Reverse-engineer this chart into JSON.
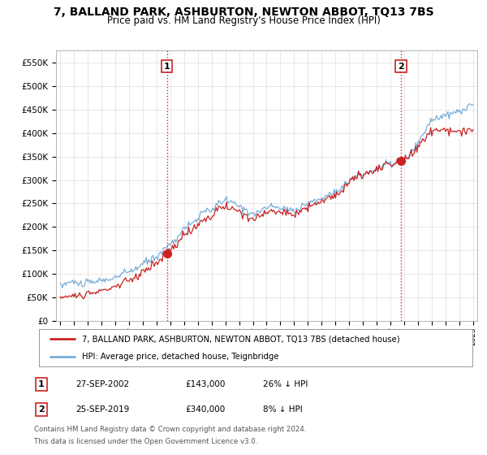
{
  "title": "7, BALLAND PARK, ASHBURTON, NEWTON ABBOT, TQ13 7BS",
  "subtitle": "Price paid vs. HM Land Registry's House Price Index (HPI)",
  "ylim": [
    0,
    577000
  ],
  "yticks": [
    0,
    50000,
    100000,
    150000,
    200000,
    250000,
    300000,
    350000,
    400000,
    450000,
    500000,
    550000
  ],
  "ytick_labels": [
    "£0",
    "£50K",
    "£100K",
    "£150K",
    "£200K",
    "£250K",
    "£300K",
    "£350K",
    "£400K",
    "£450K",
    "£500K",
    "£550K"
  ],
  "legend_line1": "7, BALLAND PARK, ASHBURTON, NEWTON ABBOT, TQ13 7BS (detached house)",
  "legend_line2": "HPI: Average price, detached house, Teignbridge",
  "transaction1_label": "1",
  "transaction1_date": "27-SEP-2002",
  "transaction1_price": "£143,000",
  "transaction1_hpi": "26% ↓ HPI",
  "transaction2_label": "2",
  "transaction2_date": "25-SEP-2019",
  "transaction2_price": "£340,000",
  "transaction2_hpi": "8% ↓ HPI",
  "footnote1": "Contains HM Land Registry data © Crown copyright and database right 2024.",
  "footnote2": "This data is licensed under the Open Government Licence v3.0.",
  "line_color_property": "#cc2222",
  "line_color_hpi": "#7aaed6",
  "vline_color": "#cc2222",
  "background_color": "#ffffff",
  "grid_color": "#dddddd",
  "title_fontsize": 10,
  "subtitle_fontsize": 8.5,
  "transaction1_x_year": 2002.75,
  "transaction1_y": 143000,
  "transaction2_x_year": 2019.75,
  "transaction2_y": 340000,
  "xlim_left": 1994.7,
  "xlim_right": 2025.3
}
